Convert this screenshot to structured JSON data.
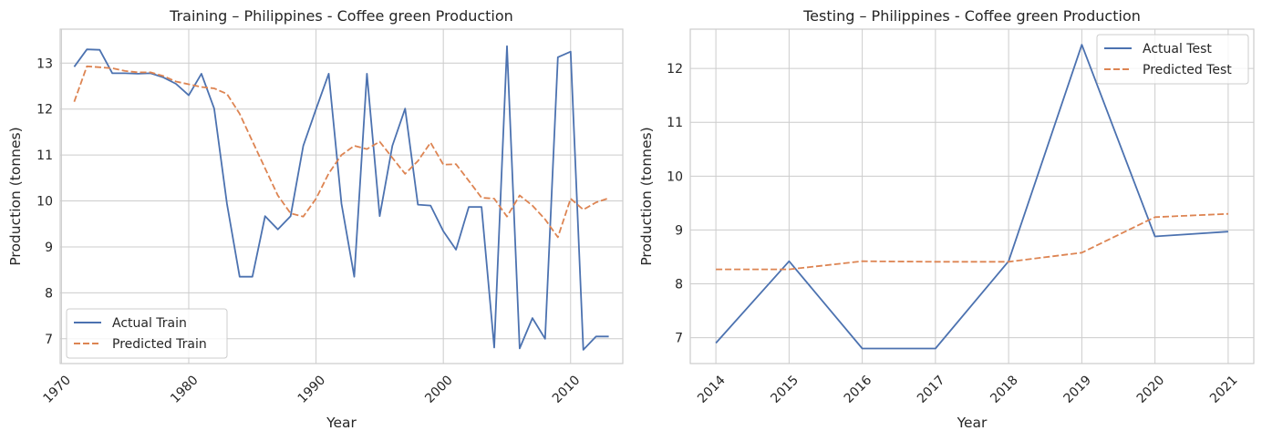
{
  "chart_data": [
    {
      "type": "line",
      "title": "Training – Philippines - Coffee green Production",
      "xlabel": "Year",
      "ylabel": "Production (tonnes)",
      "xlim": [
        1969.9,
        2014.1
      ],
      "ylim": [
        6.46,
        13.74
      ],
      "xticks": [
        1970,
        1980,
        1990,
        2000,
        2010
      ],
      "yticks": [
        7,
        8,
        9,
        10,
        11,
        12,
        13
      ],
      "legend_position": "lower-left",
      "grid": true,
      "series": [
        {
          "name": "Actual Train",
          "style": "solid",
          "color": "#4c72b0",
          "x": [
            1971,
            1972,
            1973,
            1974,
            1975,
            1976,
            1977,
            1978,
            1979,
            1980,
            1981,
            1982,
            1983,
            1984,
            1985,
            1986,
            1987,
            1988,
            1989,
            1990,
            1991,
            1992,
            1993,
            1994,
            1995,
            1996,
            1997,
            1998,
            1999,
            2000,
            2001,
            2002,
            2003,
            2004,
            2005,
            2006,
            2007,
            2008,
            2009,
            2010,
            2011,
            2012,
            2013
          ],
          "y": [
            12.92,
            13.3,
            13.29,
            12.78,
            12.78,
            12.77,
            12.78,
            12.69,
            12.55,
            12.3,
            12.77,
            12.01,
            9.94,
            8.35,
            8.35,
            9.67,
            9.38,
            9.67,
            11.2,
            12.0,
            12.77,
            9.94,
            8.35,
            12.77,
            9.67,
            11.2,
            12.01,
            9.92,
            9.9,
            9.34,
            8.94,
            9.87,
            9.87,
            6.81,
            13.37,
            6.79,
            7.45,
            7.0,
            13.13,
            13.25,
            6.76,
            7.05,
            7.05
          ]
        },
        {
          "name": "Predicted Train",
          "style": "dashed",
          "color": "#dd8452",
          "x": [
            1971,
            1972,
            1973,
            1974,
            1975,
            1976,
            1977,
            1978,
            1979,
            1980,
            1981,
            1982,
            1983,
            1984,
            1985,
            1986,
            1987,
            1988,
            1989,
            1990,
            1991,
            1992,
            1993,
            1994,
            1995,
            1996,
            1997,
            1998,
            1999,
            2000,
            2001,
            2002,
            2003,
            2004,
            2005,
            2006,
            2007,
            2008,
            2009,
            2010,
            2011,
            2012,
            2013
          ],
          "y": [
            12.16,
            12.93,
            12.91,
            12.89,
            12.83,
            12.8,
            12.8,
            12.72,
            12.6,
            12.54,
            12.48,
            12.45,
            12.33,
            11.9,
            11.3,
            10.71,
            10.12,
            9.73,
            9.66,
            10.05,
            10.6,
            11.0,
            11.2,
            11.13,
            11.29,
            10.94,
            10.59,
            10.87,
            11.27,
            10.79,
            10.8,
            10.44,
            10.07,
            10.05,
            9.66,
            10.12,
            9.9,
            9.6,
            9.21,
            10.05,
            9.81,
            9.97,
            10.06
          ]
        }
      ]
    },
    {
      "type": "line",
      "title": "Testing – Philippines - Coffee green Production",
      "xlabel": "Year",
      "ylabel": "Production (tonnes)",
      "xlim": [
        2013.65,
        2021.35
      ],
      "ylim": [
        6.52,
        12.73
      ],
      "xticks": [
        2014,
        2015,
        2016,
        2017,
        2018,
        2019,
        2020,
        2021
      ],
      "yticks": [
        7,
        8,
        9,
        10,
        11,
        12
      ],
      "legend_position": "upper-right",
      "grid": true,
      "series": [
        {
          "name": "Actual Test",
          "style": "solid",
          "color": "#4c72b0",
          "x": [
            2014,
            2015,
            2016,
            2017,
            2018,
            2019,
            2020,
            2021
          ],
          "y": [
            6.9,
            8.42,
            6.8,
            6.8,
            8.42,
            12.44,
            8.88,
            8.97
          ]
        },
        {
          "name": "Predicted Test",
          "style": "dashed",
          "color": "#dd8452",
          "x": [
            2014,
            2015,
            2016,
            2017,
            2018,
            2019,
            2020,
            2021
          ],
          "y": [
            8.27,
            8.27,
            8.42,
            8.41,
            8.41,
            8.58,
            9.24,
            9.3
          ]
        }
      ]
    }
  ]
}
